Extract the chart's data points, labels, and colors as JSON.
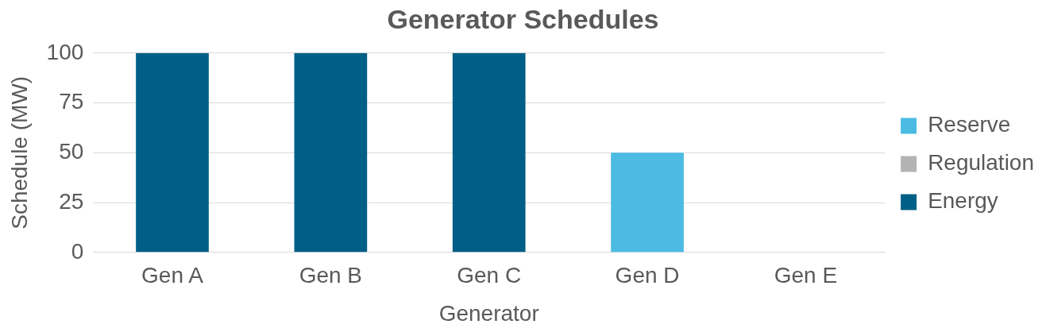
{
  "chart_data": {
    "type": "bar",
    "title": "Generator Schedules",
    "xlabel": "Generator",
    "ylabel": "Schedule (MW)",
    "categories": [
      "Gen A",
      "Gen B",
      "Gen C",
      "Gen D",
      "Gen E"
    ],
    "stacked": true,
    "series": [
      {
        "name": "Energy",
        "color": "#005f86",
        "values": [
          100,
          100,
          100,
          0,
          0
        ]
      },
      {
        "name": "Regulation",
        "color": "#b3b3b3",
        "values": [
          0,
          0,
          0,
          0,
          0
        ]
      },
      {
        "name": "Reserve",
        "color": "#4bbbe3",
        "values": [
          0,
          0,
          0,
          50,
          0
        ]
      }
    ],
    "ylim": [
      0,
      100
    ],
    "yticks": [
      0,
      25,
      50,
      75,
      100
    ],
    "grid": "y",
    "legend": "right"
  }
}
